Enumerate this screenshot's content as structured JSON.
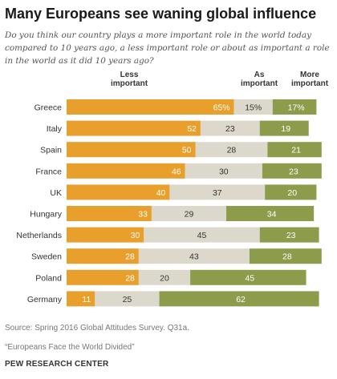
{
  "title": "Many Europeans see waning global influence",
  "subtitle": "Do you think our country plays a more important role in the world today\ncompared to 10 years ago, a less important role or about as important a role\nin the world as it did 10 years ago?",
  "chart_data": {
    "type": "bar",
    "orientation": "horizontal",
    "stacked": true,
    "categories": [
      "Greece",
      "Italy",
      "Spain",
      "France",
      "UK",
      "Hungary",
      "Netherlands",
      "Sweden",
      "Poland",
      "Germany"
    ],
    "series": [
      {
        "name": "Less\nimportant",
        "color": "#e89f2b",
        "values": [
          65,
          52,
          50,
          46,
          40,
          33,
          30,
          28,
          28,
          11
        ],
        "labels": [
          "65%",
          "52",
          "50",
          "46",
          "40",
          "33",
          "30",
          "28",
          "28",
          "11"
        ]
      },
      {
        "name": "As\nimportant",
        "color": "#dcd9cc",
        "values": [
          15,
          23,
          28,
          30,
          37,
          29,
          45,
          43,
          20,
          25
        ],
        "labels": [
          "15%",
          "23",
          "28",
          "30",
          "37",
          "29",
          "45",
          "43",
          "20",
          "25"
        ]
      },
      {
        "name": "More\nimportant",
        "color": "#8c9c4a",
        "values": [
          17,
          19,
          21,
          23,
          20,
          34,
          23,
          28,
          45,
          62
        ],
        "labels": [
          "17%",
          "19",
          "21",
          "23",
          "20",
          "34",
          "23",
          "28",
          "45",
          "62"
        ]
      }
    ],
    "legend_position": "top",
    "grid": false
  },
  "footer": {
    "source": "Source: Spring 2016 Global Attitudes Survey. Q31a.",
    "report": "“Europeans Face the World Divided”",
    "org": "PEW RESEARCH CENTER"
  }
}
